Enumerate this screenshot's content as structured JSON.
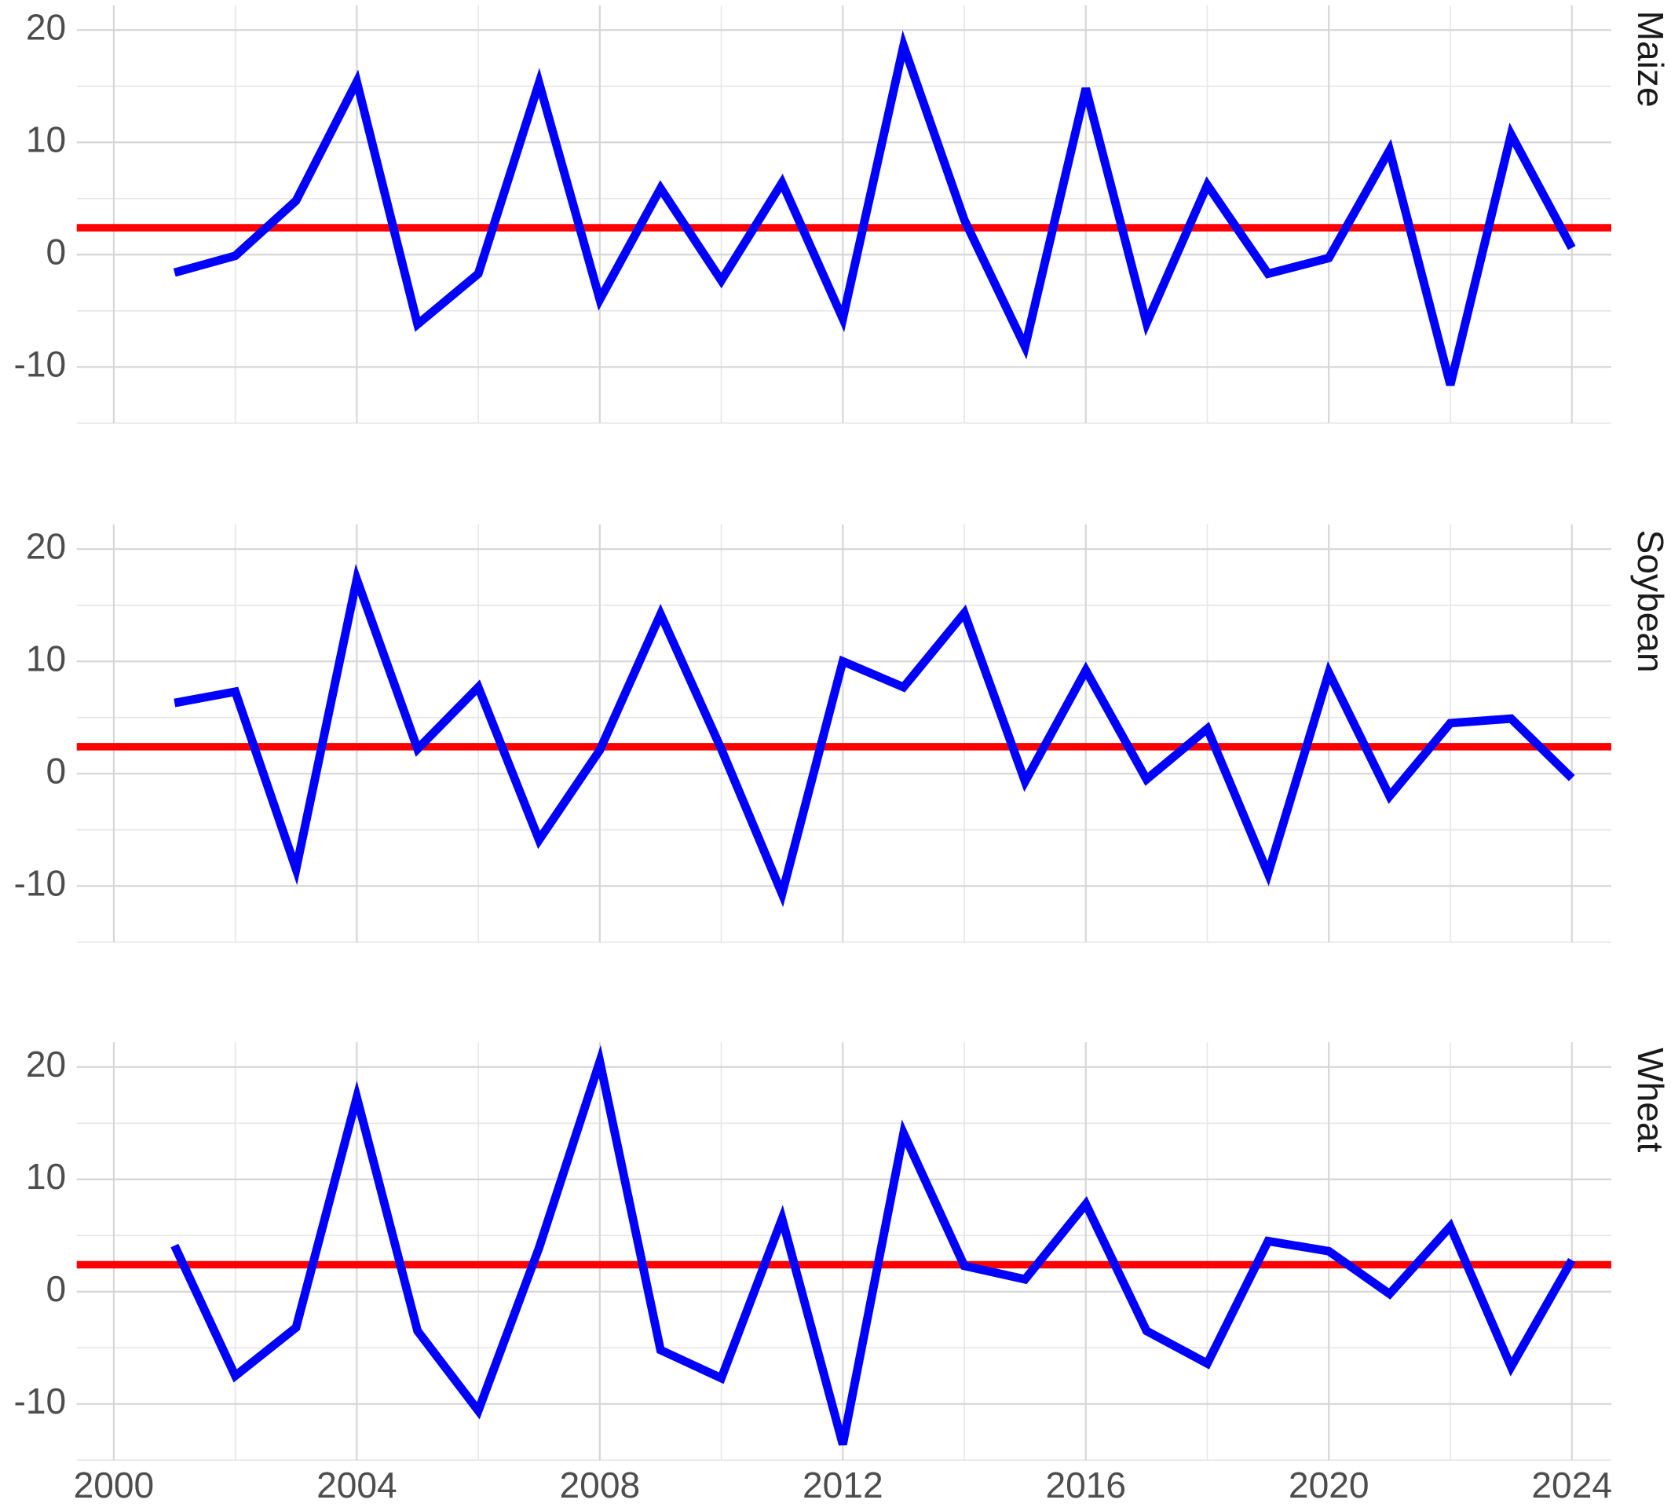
{
  "chart_data": [
    {
      "type": "line",
      "title": "Maize",
      "x": [
        2001,
        2002,
        2003,
        2004,
        2005,
        2006,
        2007,
        2008,
        2009,
        2010,
        2011,
        2012,
        2013,
        2014,
        2015,
        2016,
        2017,
        2018,
        2019,
        2020,
        2021,
        2022,
        2023,
        2024
      ],
      "series": [
        {
          "color": "#0000ff",
          "values": [
            -1.6,
            -0.1,
            4.8,
            15.4,
            -6.2,
            -1.7,
            15.3,
            -4.0,
            5.9,
            -2.3,
            6.4,
            -5.7,
            18.6,
            3.1,
            -8.2,
            14.8,
            -6.1,
            6.2,
            -1.7,
            -0.3,
            9.3,
            -11.6,
            10.7,
            0.6
          ]
        }
      ],
      "hline": {
        "value": 2.4,
        "color": "#ff0000"
      },
      "xlim": [
        1999.39,
        2024.65
      ],
      "xticks": [
        2000,
        2004,
        2008,
        2012,
        2016,
        2020,
        2024
      ],
      "x_tick_labels": false,
      "ylim": [
        -15,
        22.2
      ],
      "yticks": [
        -10,
        0,
        10,
        20
      ],
      "grid": true
    },
    {
      "type": "line",
      "title": "Soybean",
      "x": [
        2001,
        2002,
        2003,
        2004,
        2005,
        2006,
        2007,
        2008,
        2009,
        2010,
        2011,
        2012,
        2013,
        2014,
        2015,
        2016,
        2017,
        2018,
        2019,
        2020,
        2021,
        2022,
        2023,
        2024
      ],
      "series": [
        {
          "color": "#0000ff",
          "values": [
            6.3,
            7.3,
            -8.5,
            17.3,
            2.2,
            7.7,
            -5.9,
            2.1,
            14.2,
            2.2,
            -10.7,
            10.0,
            7.7,
            14.3,
            -0.7,
            9.2,
            -0.5,
            4.0,
            -8.9,
            9.0,
            -2.0,
            4.5,
            4.9,
            -0.4
          ]
        }
      ],
      "hline": {
        "value": 2.4,
        "color": "#ff0000"
      },
      "xlim": [
        1999.39,
        2024.65
      ],
      "xticks": [
        2000,
        2004,
        2008,
        2012,
        2016,
        2020,
        2024
      ],
      "x_tick_labels": false,
      "ylim": [
        -15,
        22.2
      ],
      "yticks": [
        -10,
        0,
        10,
        20
      ],
      "grid": true
    },
    {
      "type": "line",
      "title": "Wheat",
      "x": [
        2001,
        2002,
        2003,
        2004,
        2005,
        2006,
        2007,
        2008,
        2009,
        2010,
        2011,
        2012,
        2013,
        2014,
        2015,
        2016,
        2017,
        2018,
        2019,
        2020,
        2021,
        2022,
        2023,
        2024
      ],
      "series": [
        {
          "color": "#0000ff",
          "values": [
            4.1,
            -7.5,
            -3.2,
            17.3,
            -3.5,
            -10.6,
            3.9,
            20.5,
            -5.2,
            -7.7,
            6.5,
            -13.6,
            14.1,
            2.3,
            1.1,
            7.8,
            -3.5,
            -6.4,
            4.5,
            3.6,
            -0.2,
            5.8,
            -6.7,
            2.8
          ]
        }
      ],
      "hline": {
        "value": 2.4,
        "color": "#ff0000"
      },
      "xlim": [
        1999.39,
        2024.65
      ],
      "xticks": [
        2000,
        2004,
        2008,
        2012,
        2016,
        2020,
        2024
      ],
      "x_tick_labels": true,
      "ylim": [
        -15,
        22.2
      ],
      "yticks": [
        -10,
        0,
        10,
        20
      ],
      "grid": true
    }
  ]
}
